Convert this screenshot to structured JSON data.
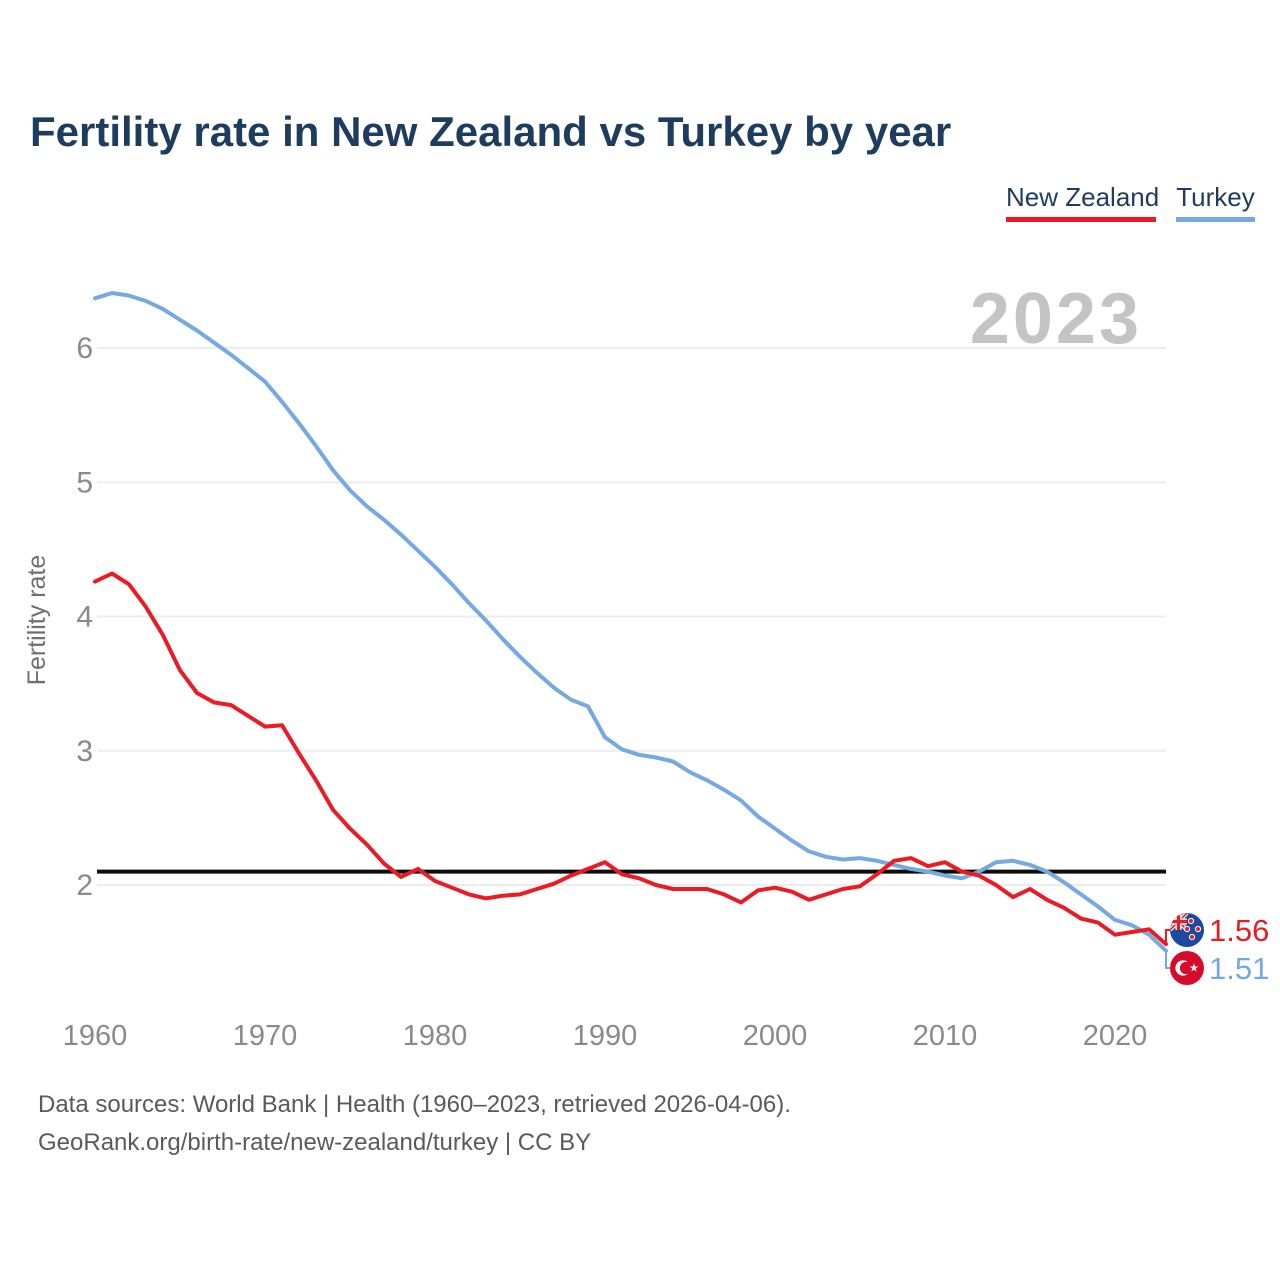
{
  "title": "Fertility rate in New Zealand vs Turkey by year",
  "watermark_year": "2023",
  "legend": [
    {
      "label": "New Zealand",
      "color": "#ec1b23"
    },
    {
      "label": "Turkey",
      "color": "#74a9e1"
    }
  ],
  "y_axis": {
    "label": "Fertility rate",
    "ticks": [
      2,
      3,
      4,
      5,
      6
    ]
  },
  "x_axis": {
    "ticks": [
      1960,
      1970,
      1980,
      1990,
      2000,
      2010,
      2020
    ]
  },
  "reference_line": {
    "value": 2.1,
    "color": "#0d0d0d"
  },
  "end_labels": [
    {
      "series": "New Zealand",
      "value": "1.56",
      "flag": "new-zealand-flag",
      "color": "#ec1b23"
    },
    {
      "series": "Turkey",
      "value": "1.51",
      "flag": "turkey-flag",
      "color": "#74a9e1"
    }
  ],
  "footer": {
    "line1": "Data sources: World Bank | Health (1960–2023, retrieved 2026-04-06).",
    "line2": "GeoRank.org/birth-rate/new-zealand/turkey | CC BY"
  },
  "chart_data": {
    "type": "line",
    "title": "Fertility rate in New Zealand vs Turkey by year",
    "xlabel": "",
    "ylabel": "Fertility rate",
    "xlim": [
      1960,
      2023
    ],
    "ylim": [
      1.3,
      6.6
    ],
    "grid": "horizontal",
    "legend_position": "top-right",
    "annotations": {
      "replacement_level_line": 2.1,
      "watermark": "2023"
    },
    "x": [
      1960,
      1961,
      1962,
      1963,
      1964,
      1965,
      1966,
      1967,
      1968,
      1969,
      1970,
      1971,
      1972,
      1973,
      1974,
      1975,
      1976,
      1977,
      1978,
      1979,
      1980,
      1981,
      1982,
      1983,
      1984,
      1985,
      1986,
      1987,
      1988,
      1989,
      1990,
      1991,
      1992,
      1993,
      1994,
      1995,
      1996,
      1997,
      1998,
      1999,
      2000,
      2001,
      2002,
      2003,
      2004,
      2005,
      2006,
      2007,
      2008,
      2009,
      2010,
      2011,
      2012,
      2013,
      2014,
      2015,
      2016,
      2017,
      2018,
      2019,
      2020,
      2021,
      2022,
      2023
    ],
    "series": [
      {
        "name": "New Zealand",
        "color": "#ec1b23",
        "end_value": 1.56,
        "values": [
          4.26,
          4.32,
          4.24,
          4.07,
          3.86,
          3.6,
          3.43,
          3.36,
          3.34,
          3.26,
          3.18,
          3.19,
          2.98,
          2.78,
          2.56,
          2.42,
          2.3,
          2.16,
          2.06,
          2.12,
          2.03,
          1.98,
          1.93,
          1.9,
          1.92,
          1.93,
          1.97,
          2.01,
          2.07,
          2.12,
          2.17,
          2.08,
          2.05,
          2.0,
          1.97,
          1.97,
          1.97,
          1.93,
          1.87,
          1.96,
          1.98,
          1.95,
          1.89,
          1.93,
          1.97,
          1.99,
          2.08,
          2.18,
          2.2,
          2.14,
          2.17,
          2.1,
          2.07,
          2.0,
          1.91,
          1.97,
          1.89,
          1.83,
          1.75,
          1.72,
          1.63,
          1.65,
          1.67,
          1.56
        ]
      },
      {
        "name": "Turkey",
        "color": "#74a9e1",
        "end_value": 1.51,
        "values": [
          6.37,
          6.41,
          6.39,
          6.35,
          6.29,
          6.21,
          6.13,
          6.04,
          5.95,
          5.85,
          5.75,
          5.6,
          5.44,
          5.27,
          5.09,
          4.94,
          4.82,
          4.72,
          4.61,
          4.49,
          4.37,
          4.24,
          4.1,
          3.97,
          3.83,
          3.7,
          3.58,
          3.47,
          3.38,
          3.33,
          3.1,
          3.01,
          2.97,
          2.95,
          2.92,
          2.84,
          2.78,
          2.71,
          2.63,
          2.51,
          2.42,
          2.33,
          2.25,
          2.21,
          2.19,
          2.2,
          2.18,
          2.15,
          2.12,
          2.1,
          2.07,
          2.05,
          2.1,
          2.17,
          2.18,
          2.15,
          2.1,
          2.02,
          1.93,
          1.84,
          1.74,
          1.7,
          1.63,
          1.51
        ]
      }
    ]
  }
}
